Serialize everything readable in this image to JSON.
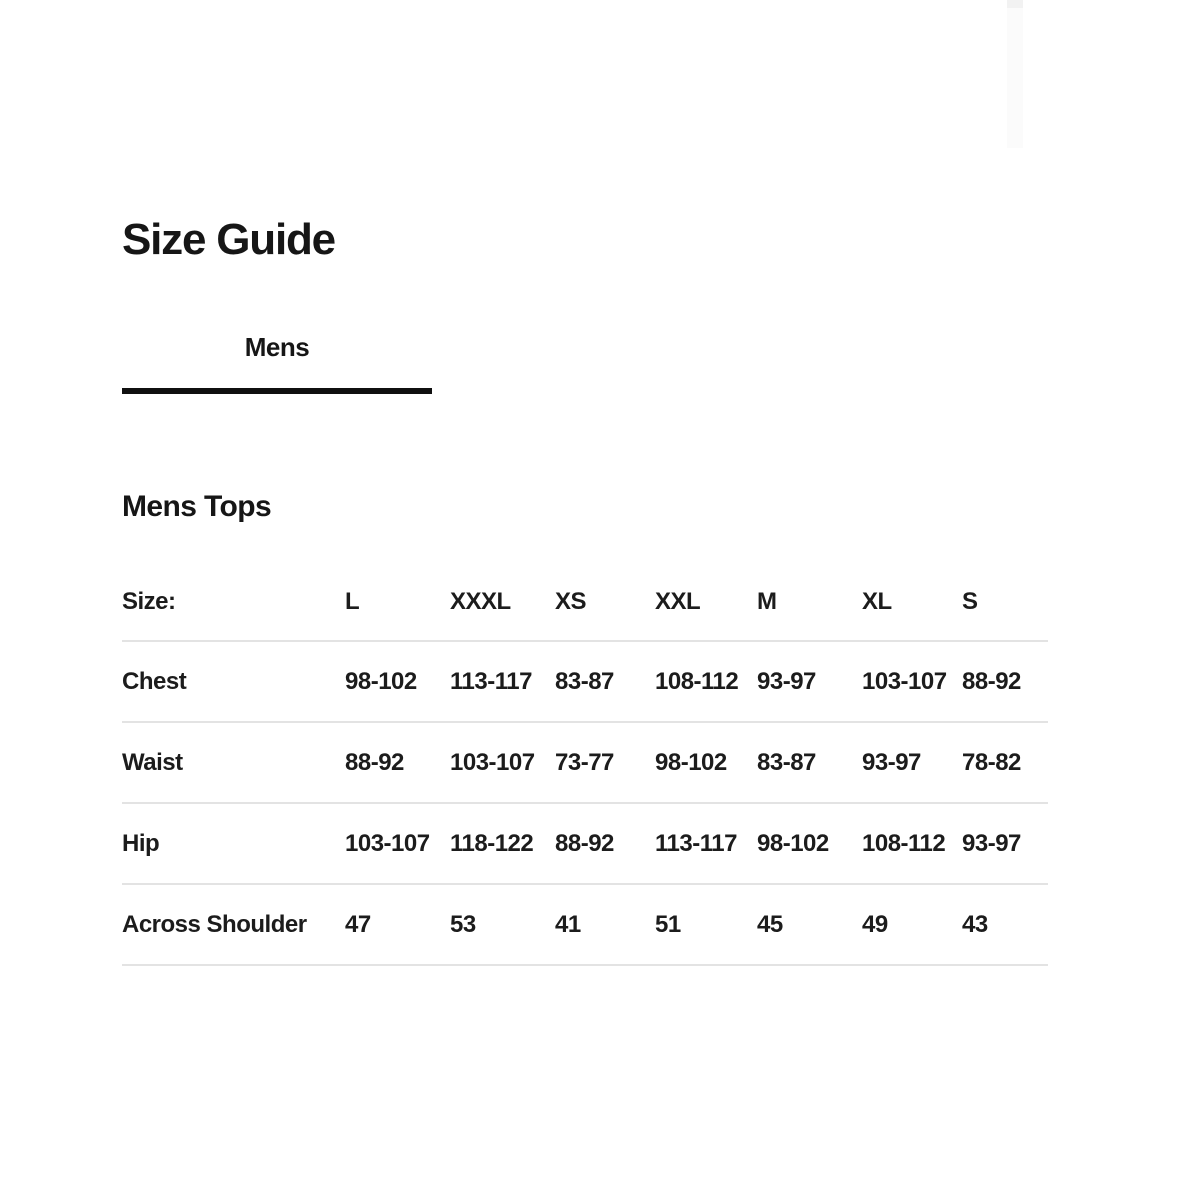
{
  "page": {
    "title": "Size Guide",
    "tabs": [
      {
        "label": "Mens",
        "active": true
      }
    ],
    "section_title": "Mens Tops",
    "table": {
      "header_label": "Size:",
      "columns": [
        "L",
        "XXXL",
        "XS",
        "XXL",
        "M",
        "XL",
        "S"
      ],
      "rows": [
        {
          "label": "Chest",
          "values": [
            "98-102",
            "113-117",
            "83-87",
            "108-112",
            "93-97",
            "103-107",
            "88-92"
          ]
        },
        {
          "label": "Waist",
          "values": [
            "88-92",
            "103-107",
            "73-77",
            "98-102",
            "83-87",
            "93-97",
            "78-82"
          ]
        },
        {
          "label": "Hip",
          "values": [
            "103-107",
            "118-122",
            "88-92",
            "113-117",
            "98-102",
            "108-112",
            "93-97"
          ]
        },
        {
          "label": "Across Shoulder",
          "values": [
            "47",
            "53",
            "41",
            "51",
            "45",
            "49",
            "43"
          ]
        }
      ]
    },
    "colors": {
      "text": "#1c1c1c",
      "divider": "#e3e3e3",
      "tab_underline": "#101010",
      "background": "#ffffff"
    }
  }
}
